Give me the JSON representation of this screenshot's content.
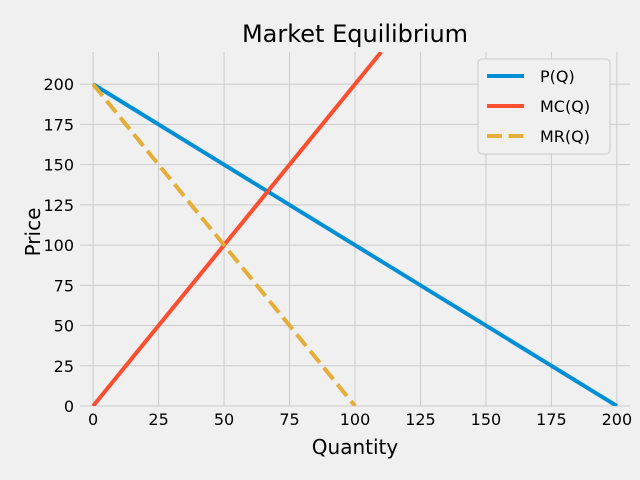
{
  "chart_data": {
    "type": "line",
    "title": "Market Equilibrium",
    "xlabel": "Quantity",
    "ylabel": "Price",
    "xlim": [
      -5,
      205
    ],
    "ylim": [
      0,
      220
    ],
    "xticks": [
      0,
      25,
      50,
      75,
      100,
      125,
      150,
      175,
      200
    ],
    "yticks": [
      0,
      25,
      50,
      75,
      100,
      125,
      150,
      175,
      200
    ],
    "grid": true,
    "legend_position": "top-right",
    "background": "#f0f0f0",
    "series": [
      {
        "name": "P(Q)",
        "color": "#008fd5",
        "style": "solid",
        "x": [
          0,
          200
        ],
        "y": [
          200,
          0
        ]
      },
      {
        "name": "MC(Q)",
        "color": "#fc4f30",
        "style": "solid",
        "x": [
          0,
          110
        ],
        "y": [
          0,
          220
        ]
      },
      {
        "name": "MR(Q)",
        "color": "#e5ae38",
        "style": "dashed",
        "x": [
          0,
          100
        ],
        "y": [
          200,
          0
        ]
      }
    ]
  }
}
